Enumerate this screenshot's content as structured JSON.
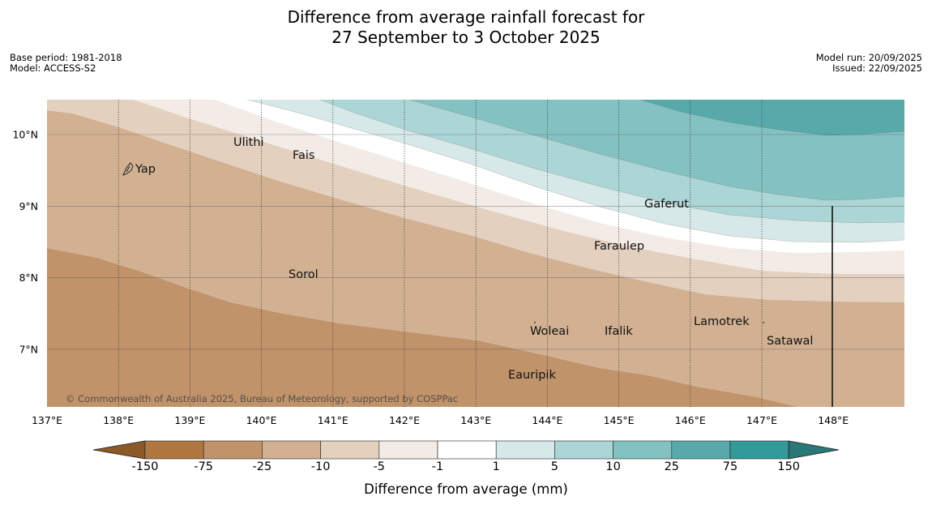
{
  "title": {
    "line1": "Difference from average rainfall forecast for",
    "line2": "27 September to 3 October 2025"
  },
  "meta_left": {
    "base_period": "Base period: 1981-2018",
    "model": "Model: ACCESS-S2"
  },
  "meta_right": {
    "model_run": "Model run: 20/09/2025",
    "issued": "Issued: 22/09/2025"
  },
  "map": {
    "lon_ticks": [
      "137°E",
      "138°E",
      "139°E",
      "140°E",
      "141°E",
      "142°E",
      "143°E",
      "144°E",
      "145°E",
      "146°E",
      "147°E",
      "148°E"
    ],
    "lat_ticks": [
      "10°N",
      "9°N",
      "8°N",
      "7°N"
    ],
    "places": [
      "Ulithi",
      "Fais",
      "Yap",
      "Gaferut",
      "Faraulep",
      "Sorol",
      "Woleai",
      "Ifalik",
      "Lamotrek",
      "Satawal",
      "Eauripik"
    ],
    "copyright": "© Commonwealth of Australia 2025, Bureau of Meteorology, supported by COSPPac"
  },
  "colorbar": {
    "labels": [
      "-150",
      "-75",
      "-25",
      "-10",
      "-5",
      "-1",
      "1",
      "5",
      "10",
      "25",
      "75",
      "150"
    ],
    "title": "Difference from average (mm)",
    "colors": {
      "below_min": "#8c5a28",
      "bins": [
        "#b07840",
        "#c0936a",
        "#d2b192",
        "#e3d0bf",
        "#f3ebe5",
        "#ffffff",
        "#d6e9e8",
        "#acd5d5",
        "#84c1c1",
        "#58aaaa",
        "#339999"
      ],
      "above_max": "#2a7878"
    }
  }
}
